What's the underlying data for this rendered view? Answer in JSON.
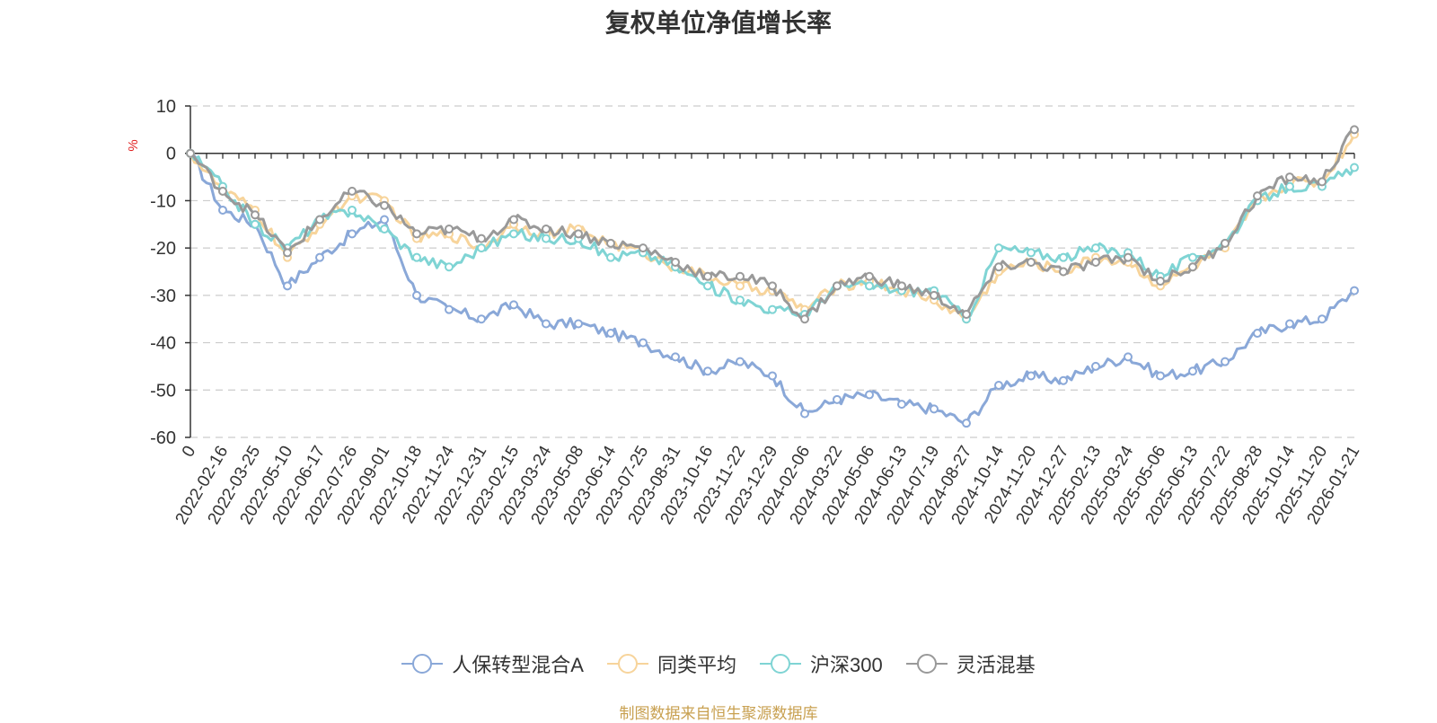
{
  "chart_data": {
    "type": "line",
    "title": "复权单位净值增长率",
    "ylabel": "%",
    "ylim": [
      -60,
      10
    ],
    "yticks": [
      10,
      0,
      -10,
      -20,
      -30,
      -40,
      -50,
      -60
    ],
    "grid": true,
    "legend_position": "bottom-center",
    "source_note": "制图数据来自恒生聚源数据库",
    "categories": [
      "0",
      "2022-02-16",
      "2022-03-25",
      "2022-05-10",
      "2022-06-17",
      "2022-07-26",
      "2022-09-01",
      "2022-10-18",
      "2022-11-24",
      "2022-12-31",
      "2023-02-15",
      "2023-03-24",
      "2023-05-08",
      "2023-06-14",
      "2023-07-25",
      "2023-08-31",
      "2023-10-16",
      "2023-11-22",
      "2023-12-29",
      "2024-02-06",
      "2024-03-22",
      "2024-05-06",
      "2024-06-13",
      "2024-07-19",
      "2024-08-27",
      "2024-10-14",
      "2024-11-20",
      "2024-12-27",
      "2025-02-13",
      "2025-03-24",
      "2025-05-06",
      "2025-06-13",
      "2025-07-22",
      "2025-08-28",
      "2025-10-14",
      "2025-11-20",
      "2026-01-21"
    ],
    "series": [
      {
        "name": "人保转型混合A",
        "color": "#8aa8d8",
        "values": [
          0,
          -12,
          -15,
          -28,
          -22,
          -17,
          -14,
          -30,
          -33,
          -35,
          -32,
          -36,
          -36,
          -38,
          -40,
          -43,
          -46,
          -44,
          -47,
          -55,
          -52,
          -51,
          -53,
          -54,
          -57,
          -49,
          -47,
          -48,
          -45,
          -43,
          -47,
          -46,
          -44,
          -38,
          -36,
          -35,
          -29
        ]
      },
      {
        "name": "同类平均",
        "color": "#f7d49b",
        "values": [
          0,
          -8,
          -12,
          -22,
          -15,
          -9,
          -10,
          -18,
          -17,
          -20,
          -15,
          -17,
          -16,
          -19,
          -21,
          -24,
          -26,
          -28,
          -29,
          -33,
          -28,
          -27,
          -29,
          -31,
          -35,
          -25,
          -23,
          -25,
          -22,
          -23,
          -28,
          -24,
          -20,
          -10,
          -6,
          -6,
          4
        ]
      },
      {
        "name": "沪深300",
        "color": "#7fd4d4",
        "values": [
          0,
          -7,
          -15,
          -20,
          -14,
          -12,
          -16,
          -22,
          -24,
          -20,
          -17,
          -18,
          -18,
          -22,
          -21,
          -24,
          -28,
          -31,
          -33,
          -34,
          -28,
          -28,
          -29,
          -29,
          -35,
          -20,
          -21,
          -22,
          -20,
          -21,
          -26,
          -22,
          -19,
          -10,
          -7,
          -7,
          -3
        ]
      },
      {
        "name": "灵活混基",
        "color": "#999999",
        "values": [
          0,
          -8,
          -13,
          -21,
          -14,
          -8,
          -11,
          -17,
          -16,
          -18,
          -14,
          -16,
          -17,
          -19,
          -20,
          -23,
          -26,
          -26,
          -28,
          -35,
          -28,
          -26,
          -28,
          -30,
          -34,
          -24,
          -23,
          -25,
          -23,
          -22,
          -27,
          -24,
          -19,
          -9,
          -5,
          -6,
          5
        ]
      }
    ]
  }
}
